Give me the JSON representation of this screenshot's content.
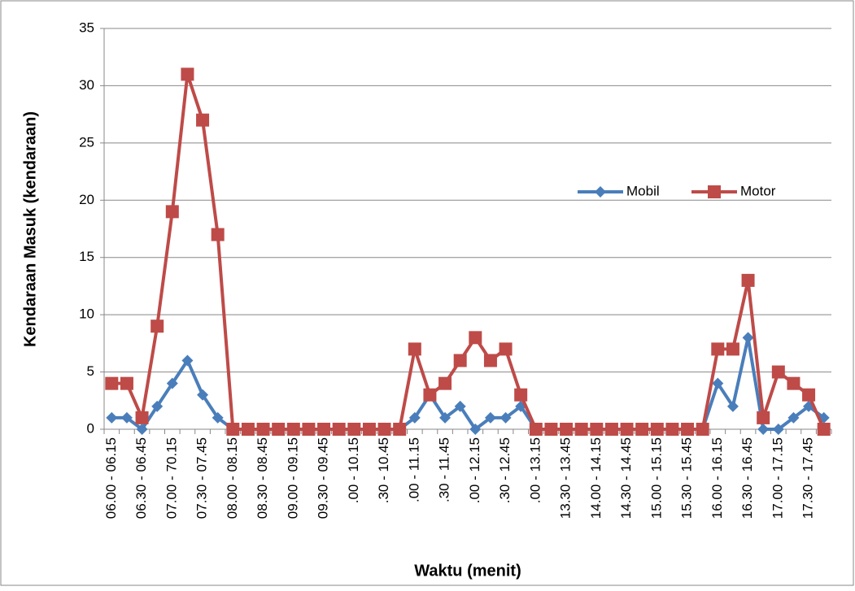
{
  "chart_data": {
    "type": "line",
    "y_label": "Kendaraan Masuk (kendaraan)",
    "x_label": "Waktu (menit)",
    "categories": [
      "06.00 - 06.15",
      null,
      "06.30 - 06.45",
      null,
      "07.00 - 70.15",
      null,
      "07.30 - 07.45",
      null,
      "08.00 - 08.15",
      null,
      "08.30 - 08.45",
      null,
      "09.00 - 09.15",
      null,
      "09.30 - 09.45",
      null,
      ".00 - 10.15",
      null,
      ".30 - 10.45",
      null,
      ".00 - 11.15",
      null,
      ".30 - 11.45",
      null,
      ".00 - 12.15",
      null,
      ".30 - 12.45",
      null,
      ".00 - 13.15",
      null,
      "13.30 - 13.45",
      null,
      "14.00 - 14.15",
      null,
      "14.30 - 14.45",
      null,
      "15.00 - 15.15",
      null,
      "15.30 - 15.45",
      null,
      "16.00 - 16.15",
      null,
      "16.30 - 16.45",
      null,
      "17.00 - 17.15",
      null,
      "17.30 - 17.45",
      null
    ],
    "series": [
      {
        "name": "Mobil",
        "color": "#4a7ebb",
        "marker": "diamond",
        "values": [
          1,
          1,
          0,
          2,
          4,
          6,
          3,
          1,
          0,
          0,
          0,
          0,
          0,
          0,
          0,
          0,
          0,
          0,
          0,
          0,
          1,
          3,
          1,
          2,
          0,
          1,
          1,
          2,
          0,
          0,
          0,
          0,
          0,
          0,
          0,
          0,
          0,
          0,
          0,
          0,
          4,
          2,
          8,
          0,
          0,
          1,
          2,
          1
        ]
      },
      {
        "name": "Motor",
        "color": "#be4b48",
        "marker": "square",
        "values": [
          4,
          4,
          1,
          9,
          19,
          31,
          27,
          17,
          0,
          0,
          0,
          0,
          0,
          0,
          0,
          0,
          0,
          0,
          0,
          0,
          7,
          3,
          4,
          6,
          8,
          6,
          7,
          3,
          0,
          0,
          0,
          0,
          0,
          0,
          0,
          0,
          0,
          0,
          0,
          0,
          7,
          7,
          13,
          1,
          5,
          4,
          3,
          0
        ]
      }
    ],
    "ylim": [
      0,
      35
    ],
    "yticks": [
      0,
      5,
      10,
      15,
      20,
      25,
      30,
      35
    ],
    "grid": true,
    "legend": "right"
  }
}
